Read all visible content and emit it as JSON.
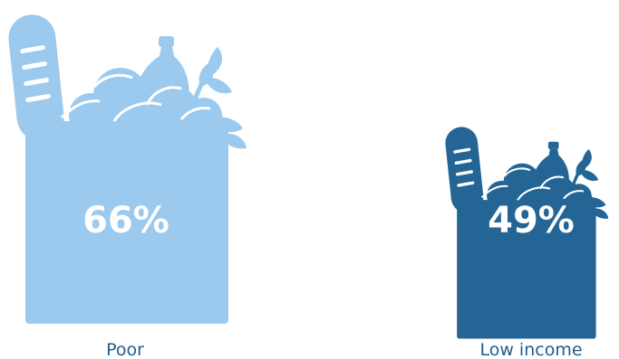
{
  "chart_data": {
    "type": "pictograph",
    "categories": [
      "Poor",
      "Low income"
    ],
    "values": [
      66,
      49
    ],
    "value_labels": [
      "66%",
      "49%"
    ],
    "unit": "%",
    "icon": "grocery-bag-icon",
    "colors": [
      "#9ccaee",
      "#246596"
    ],
    "label_color": "#1f5e8e"
  }
}
